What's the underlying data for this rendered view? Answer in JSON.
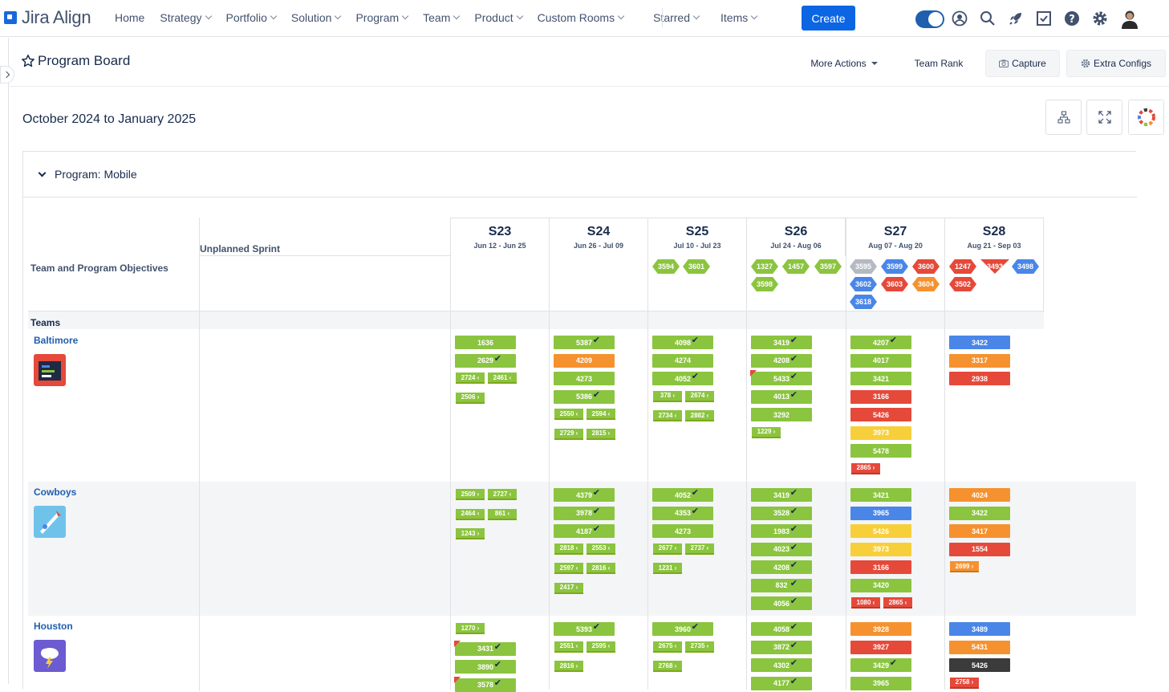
{
  "app": {
    "name": "Jira Align"
  },
  "nav": {
    "items": [
      "Home",
      "Strategy",
      "Portfolio",
      "Solution",
      "Program",
      "Team",
      "Product",
      "Custom Rooms",
      "Starred",
      "Items"
    ],
    "create_label": "Create"
  },
  "page": {
    "title": "Program Board",
    "more_actions": "More Actions",
    "team_rank": "Team Rank",
    "capture": "Capture",
    "extra_configs": "Extra Configs",
    "date_range": "October 2024 to January 2025"
  },
  "board": {
    "program_label": "Program: Mobile",
    "unplanned_label": "Unplanned Sprint",
    "objectives_label": "Team and Program Objectives",
    "teams_label": "Teams",
    "sprints": [
      {
        "name": "S23",
        "dates": "Jun 12 - Jun 25"
      },
      {
        "name": "S24",
        "dates": "Jun 26 - Jul 09"
      },
      {
        "name": "S25",
        "dates": "Jul 10 - Jul 23"
      },
      {
        "name": "S26",
        "dates": "Jul 24 - Aug 06"
      },
      {
        "name": "S27",
        "dates": "Aug 07 - Aug 20"
      },
      {
        "name": "S28",
        "dates": "Aug 21 - Sep 03"
      }
    ],
    "objectives": [
      [],
      [],
      [
        {
          "id": "3594",
          "color": "g",
          "shape": "hex"
        },
        {
          "id": "3601",
          "color": "g",
          "shape": "hex"
        }
      ],
      [
        {
          "id": "1327",
          "color": "g",
          "shape": "hex"
        },
        {
          "id": "1457",
          "color": "g",
          "shape": "hex"
        },
        {
          "id": "3597",
          "color": "g",
          "shape": "hex"
        },
        {
          "id": "3598",
          "color": "g",
          "shape": "hex"
        }
      ],
      [
        {
          "id": "3595",
          "color": "gr",
          "shape": "hex"
        },
        {
          "id": "3599",
          "color": "b",
          "shape": "hex"
        },
        {
          "id": "3600",
          "color": "r",
          "shape": "hex"
        },
        {
          "id": "3602",
          "color": "b",
          "shape": "hex"
        },
        {
          "id": "3603",
          "color": "r",
          "shape": "hex"
        },
        {
          "id": "3604",
          "color": "o",
          "shape": "hex"
        },
        {
          "id": "3618",
          "color": "b",
          "shape": "hex"
        }
      ],
      [
        {
          "id": "1247",
          "color": "r",
          "shape": "hex"
        },
        {
          "id": "3493",
          "color": "r",
          "shape": "diamond"
        },
        {
          "id": "3498",
          "color": "b",
          "shape": "hex"
        },
        {
          "id": "3502",
          "color": "r",
          "shape": "hex"
        }
      ]
    ],
    "teams": [
      {
        "name": "Baltimore"
      },
      {
        "name": "Cowboys"
      },
      {
        "name": "Houston"
      }
    ],
    "cards": {
      "baltimore": [
        [
          {
            "t": "card",
            "id": "1636",
            "c": "g"
          },
          {
            "t": "card",
            "id": "2629",
            "c": "g",
            "ck": true
          },
          {
            "t": "pair",
            "a": "2724",
            "b": "2461"
          },
          {
            "t": "feat",
            "id": "2506"
          }
        ],
        [
          {
            "t": "card",
            "id": "5387",
            "c": "g",
            "ck": true
          },
          {
            "t": "card",
            "id": "4209",
            "c": "o"
          },
          {
            "t": "card",
            "id": "4273",
            "c": "g"
          },
          {
            "t": "card",
            "id": "5386",
            "c": "g",
            "ck": true
          },
          {
            "t": "pair",
            "a": "2550",
            "b": "2594"
          },
          {
            "t": "pair",
            "a": "2729",
            "b": "2815"
          }
        ],
        [
          {
            "t": "card",
            "id": "4098",
            "c": "g",
            "ck": true
          },
          {
            "t": "card",
            "id": "4274",
            "c": "g"
          },
          {
            "t": "card",
            "id": "4052",
            "c": "g",
            "ck": true
          },
          {
            "t": "pair",
            "a": "378",
            "b": "2674"
          },
          {
            "t": "pair",
            "a": "2734",
            "b": "2882"
          }
        ],
        [
          {
            "t": "card",
            "id": "3419",
            "c": "g",
            "ck": true
          },
          {
            "t": "card",
            "id": "4208",
            "c": "g",
            "ck": true
          },
          {
            "t": "card",
            "id": "5433",
            "c": "g",
            "ck": true,
            "flag": true
          },
          {
            "t": "card",
            "id": "4013",
            "c": "g",
            "ck": true
          },
          {
            "t": "card",
            "id": "3292",
            "c": "g"
          },
          {
            "t": "feat",
            "id": "1229"
          }
        ],
        [
          {
            "t": "card",
            "id": "4207",
            "c": "g",
            "ck": true
          },
          {
            "t": "card",
            "id": "4017",
            "c": "g"
          },
          {
            "t": "card",
            "id": "3421",
            "c": "g"
          },
          {
            "t": "card",
            "id": "3166",
            "c": "r"
          },
          {
            "t": "card",
            "id": "5426",
            "c": "r"
          },
          {
            "t": "card",
            "id": "3973",
            "c": "y"
          },
          {
            "t": "card",
            "id": "5478",
            "c": "g"
          },
          {
            "t": "featr",
            "id": "2865"
          }
        ],
        [
          {
            "t": "card",
            "id": "3422",
            "c": "b"
          },
          {
            "t": "card",
            "id": "3317",
            "c": "o"
          },
          {
            "t": "card",
            "id": "2938",
            "c": "r"
          }
        ]
      ],
      "cowboys": [
        [
          {
            "t": "pair",
            "a": "2509",
            "b": "2727"
          },
          {
            "t": "pair",
            "a": "2464",
            "b": "861"
          },
          {
            "t": "feat",
            "id": "1243"
          }
        ],
        [
          {
            "t": "card",
            "id": "4379",
            "c": "g",
            "ck": true
          },
          {
            "t": "card",
            "id": "3978",
            "c": "g",
            "ck": true
          },
          {
            "t": "card",
            "id": "4187",
            "c": "g",
            "ck": true
          },
          {
            "t": "pair",
            "a": "2818",
            "b": "2553"
          },
          {
            "t": "pair",
            "a": "2597",
            "b": "2816"
          },
          {
            "t": "feat",
            "id": "2417"
          }
        ],
        [
          {
            "t": "card",
            "id": "4052",
            "c": "g",
            "ck": true
          },
          {
            "t": "card",
            "id": "4353",
            "c": "g",
            "ck": true
          },
          {
            "t": "card",
            "id": "4273",
            "c": "g"
          },
          {
            "t": "pair",
            "a": "2677",
            "b": "2737"
          },
          {
            "t": "feat",
            "id": "1231"
          }
        ],
        [
          {
            "t": "card",
            "id": "3419",
            "c": "g",
            "ck": true
          },
          {
            "t": "card",
            "id": "3528",
            "c": "g",
            "ck": true
          },
          {
            "t": "card",
            "id": "1983",
            "c": "g",
            "ck": true
          },
          {
            "t": "card",
            "id": "4023",
            "c": "g",
            "ck": true
          },
          {
            "t": "card",
            "id": "4208",
            "c": "g",
            "ck": true
          },
          {
            "t": "card",
            "id": "832",
            "c": "g",
            "ck": true
          },
          {
            "t": "card",
            "id": "4056",
            "c": "g",
            "ck": true
          }
        ],
        [
          {
            "t": "card",
            "id": "3421",
            "c": "g"
          },
          {
            "t": "card",
            "id": "3965",
            "c": "b"
          },
          {
            "t": "card",
            "id": "5426",
            "c": "y"
          },
          {
            "t": "card",
            "id": "3973",
            "c": "y"
          },
          {
            "t": "card",
            "id": "3166",
            "c": "r"
          },
          {
            "t": "card",
            "id": "3420",
            "c": "g"
          },
          {
            "t": "pairr",
            "a": "1080",
            "b": "2865"
          }
        ],
        [
          {
            "t": "card",
            "id": "4024",
            "c": "o"
          },
          {
            "t": "card",
            "id": "3422",
            "c": "g"
          },
          {
            "t": "card",
            "id": "3417",
            "c": "o"
          },
          {
            "t": "card",
            "id": "1554",
            "c": "r"
          },
          {
            "t": "feato",
            "id": "2699"
          }
        ]
      ],
      "houston": [
        [
          {
            "t": "feat",
            "id": "1270"
          },
          {
            "t": "card",
            "id": "3431",
            "c": "g",
            "ck": true,
            "flag": true
          },
          {
            "t": "card",
            "id": "3890",
            "c": "g",
            "ck": true
          },
          {
            "t": "card",
            "id": "3578",
            "c": "g",
            "ck": true,
            "flag": true
          }
        ],
        [
          {
            "t": "card",
            "id": "5393",
            "c": "g",
            "ck": true
          },
          {
            "t": "pair",
            "a": "2551",
            "b": "2595"
          },
          {
            "t": "feat",
            "id": "2816"
          }
        ],
        [
          {
            "t": "card",
            "id": "3960",
            "c": "g",
            "ck": true
          },
          {
            "t": "pair",
            "a": "2675",
            "b": "2735"
          },
          {
            "t": "feat",
            "id": "2768"
          }
        ],
        [
          {
            "t": "card",
            "id": "4058",
            "c": "g",
            "ck": true
          },
          {
            "t": "card",
            "id": "3872",
            "c": "g",
            "ck": true
          },
          {
            "t": "card",
            "id": "4302",
            "c": "g",
            "ck": true
          },
          {
            "t": "card",
            "id": "4177",
            "c": "g",
            "ck": true
          }
        ],
        [
          {
            "t": "card",
            "id": "3928",
            "c": "o"
          },
          {
            "t": "card",
            "id": "3927",
            "c": "r"
          },
          {
            "t": "card",
            "id": "3429",
            "c": "g",
            "ck": true
          },
          {
            "t": "card",
            "id": "3965",
            "c": "g"
          }
        ],
        [
          {
            "t": "card",
            "id": "3489",
            "c": "b"
          },
          {
            "t": "card",
            "id": "5431",
            "c": "o"
          },
          {
            "t": "card",
            "id": "5426",
            "c": "k"
          },
          {
            "t": "featr",
            "id": "2758"
          }
        ]
      ]
    }
  },
  "colors": {
    "accent": "#0c66e4",
    "green": "#8bc43f",
    "orange": "#f5922f",
    "red": "#e5493a",
    "blue": "#4a86e8",
    "yellow": "#f7cf3a"
  }
}
